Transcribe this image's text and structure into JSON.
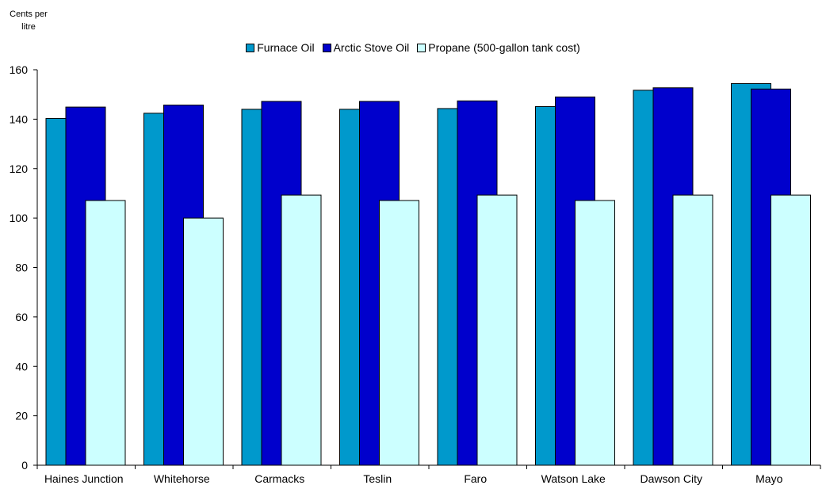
{
  "chart_data": {
    "type": "bar",
    "ylabel": "Cents per litre",
    "ylim": [
      0,
      160
    ],
    "yticks": [
      0,
      20,
      40,
      60,
      80,
      100,
      120,
      140,
      160
    ],
    "grid": false,
    "legend_position": "top-center",
    "categories": [
      "Haines Junction",
      "Whitehorse",
      "Carmacks",
      "Teslin",
      "Faro",
      "Watson Lake",
      "Dawson City",
      "Mayo"
    ],
    "series": [
      {
        "name": "Furnace Oil",
        "color": "#0099cc",
        "values": [
          140.3,
          142.4,
          144.0,
          144.0,
          144.3,
          145.1,
          151.7,
          154.4
        ]
      },
      {
        "name": "Arctic Stove Oil",
        "color": "#0000cc",
        "values": [
          144.9,
          145.7,
          147.2,
          147.2,
          147.4,
          149.0,
          152.7,
          152.2
        ]
      },
      {
        "name": "Propane (500-gallon tank cost)",
        "color": "#ccffff",
        "values": [
          107.1,
          100.0,
          109.3,
          107.1,
          109.3,
          107.1,
          109.3,
          109.3
        ]
      }
    ]
  }
}
